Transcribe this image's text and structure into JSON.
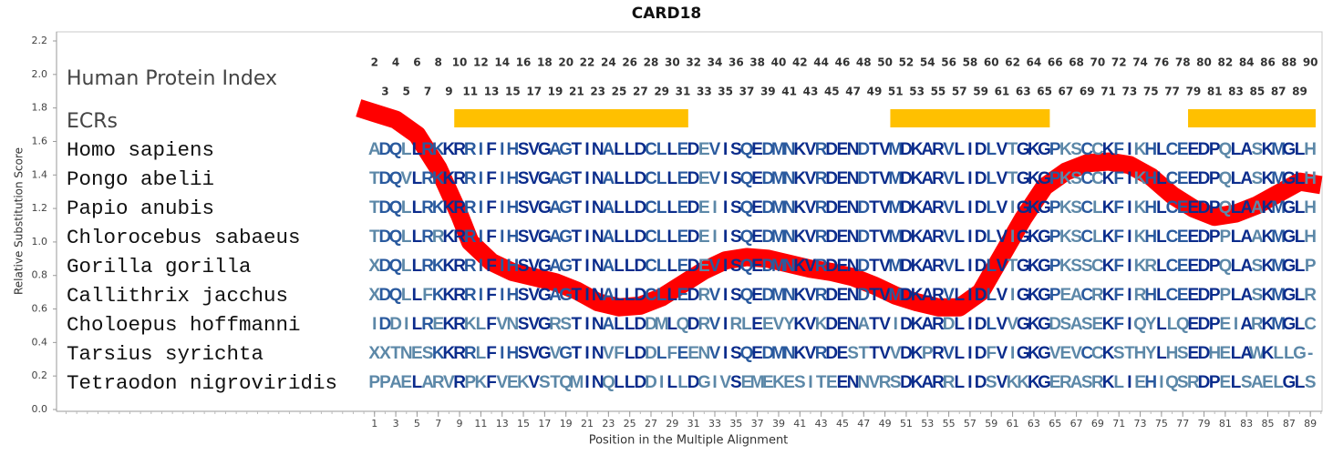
{
  "chart_data": {
    "type": "line",
    "title": "CARD18",
    "y_label": "Relative Substitution Score",
    "x_label": "Position in the Multiple Alignment",
    "xlim": [
      -28.9,
      90.1
    ],
    "ylim": [
      0,
      2.2
    ],
    "yticks": [
      {
        "value": 0,
        "label": "0.0"
      },
      0.2,
      0.4,
      0.6,
      0.8,
      {
        "value": 1,
        "label": "1.0"
      },
      1.2,
      1.4,
      1.6,
      1.8,
      {
        "value": 2,
        "label": "2.0"
      },
      2.2
    ],
    "xticks": [
      1,
      3,
      5,
      7,
      9,
      11,
      13,
      15,
      17,
      19,
      21,
      23,
      25,
      27,
      29,
      31,
      33,
      35,
      37,
      39,
      41,
      43,
      45,
      47,
      49,
      51,
      53,
      55,
      57,
      59,
      61,
      63,
      65,
      67,
      69,
      71,
      73,
      75,
      77,
      79,
      81,
      83,
      85,
      87,
      89
    ],
    "x": [
      -0.5,
      1,
      3,
      5,
      7,
      8,
      9,
      10,
      12,
      14,
      16,
      18,
      20,
      22,
      24,
      26,
      28,
      30,
      32,
      34,
      36,
      38,
      40,
      42,
      44,
      46,
      48,
      50,
      52,
      54,
      56,
      58,
      60,
      62,
      64,
      66,
      68,
      70,
      72,
      74,
      76,
      78,
      80,
      82,
      84,
      86,
      88,
      90
    ],
    "series": [
      {
        "color": "#ff0000",
        "values": [
          1.8,
          1.77,
          1.73,
          1.64,
          1.44,
          1.3,
          1.16,
          1.0,
          0.88,
          0.82,
          0.79,
          0.76,
          0.71,
          0.64,
          0.61,
          0.62,
          0.67,
          0.75,
          0.83,
          0.89,
          0.91,
          0.9,
          0.87,
          0.84,
          0.82,
          0.79,
          0.74,
          0.68,
          0.64,
          0.61,
          0.61,
          0.7,
          0.92,
          1.14,
          1.33,
          1.42,
          1.47,
          1.48,
          1.46,
          1.39,
          1.28,
          1.2,
          1.15,
          1.17,
          1.22,
          1.29,
          1.36,
          1.34
        ]
      }
    ],
    "index_label": "Human Protein Index",
    "human_index": {
      "positions": [
        1,
        2,
        3,
        4,
        5,
        6,
        7,
        8,
        9,
        10,
        11,
        12,
        13,
        14,
        15,
        16,
        17,
        18,
        19,
        20,
        21,
        22,
        23,
        24,
        25,
        26,
        27,
        28,
        29,
        30,
        31,
        32,
        33,
        34,
        35,
        36,
        37,
        38,
        39,
        40,
        41,
        42,
        43,
        44,
        45,
        46,
        47,
        48,
        49,
        50,
        51,
        52,
        53,
        54,
        55,
        56,
        57,
        58,
        59,
        60,
        61,
        62,
        63,
        64,
        65,
        66,
        67,
        68,
        69,
        70,
        71,
        72,
        73,
        74,
        75,
        76,
        77,
        78,
        79,
        80,
        81,
        82,
        83,
        84,
        85,
        86,
        87,
        88,
        89
      ],
      "labels": [
        2,
        3,
        4,
        5,
        6,
        7,
        8,
        9,
        10,
        11,
        12,
        13,
        14,
        15,
        16,
        17,
        18,
        19,
        20,
        21,
        22,
        23,
        24,
        25,
        26,
        27,
        28,
        29,
        30,
        31,
        32,
        33,
        34,
        35,
        36,
        37,
        38,
        39,
        40,
        41,
        42,
        43,
        44,
        45,
        46,
        47,
        48,
        49,
        50,
        51,
        52,
        53,
        54,
        55,
        56,
        57,
        58,
        59,
        60,
        61,
        62,
        63,
        64,
        65,
        66,
        67,
        68,
        69,
        70,
        71,
        72,
        73,
        74,
        75,
        76,
        77,
        78,
        79,
        80,
        81,
        82,
        83,
        84,
        85,
        86,
        87,
        88,
        89,
        90
      ]
    },
    "ecr_label": "ECRs",
    "ecr_color": "#ffc000",
    "ecrs": [
      {
        "start": 9,
        "end": 30
      },
      {
        "start": 50,
        "end": 64
      },
      {
        "start": 78,
        "end": 89
      }
    ],
    "residue_colors": [
      "#0b2c8c",
      "#2a5a9e",
      "#5c88a8"
    ],
    "species": [
      {
        "name": "Homo sapiens",
        "sequence": "ADQLLRKKRRIFIHSVGAGTINALLDCLLEDEVISQEDMNKVRDENDTVMDKARVLIDLVTGKGPKSCCKFIKHLCEEDPQLASKMGLH"
      },
      {
        "name": "Pongo abelii",
        "sequence": "TDQVLRKKRRIFIHSVGAGTINALLDCLLEDEVISQEDMNKVRDENDTVMDKARVLIDLVTGKGPKSCCKFIKHLCEEDPQLASKMGLH"
      },
      {
        "name": "Papio anubis",
        "sequence": "TDQLLRKKRRIFIHSVGAGTINALLDCLLEDEIISQEDMNKVRDENDTVMDKARVLIDLVIGKGPKSCLKFIKHLCEEDPQLAAKMGLH"
      },
      {
        "name": "Chlorocebus sabaeus",
        "sequence": "TDQLLRRKRRIFIHSVGAGTINALLDCLLEDEIISQEDMNKVRDENDTVMDKARVLIDLVIGKGPKSCLKFIKHLCEEDPPLAAKMGLH"
      },
      {
        "name": "Gorilla gorilla",
        "sequence": "XDQLLRKKRRIFIHSVGAGTINALLDCLLEDEVISQEDMNKVRDENDTVMDKARVLIDLVTGKGPKSSCKFIKRLCEEDPQLASKMGLP"
      },
      {
        "name": "Callithrix jacchus",
        "sequence": "XDQLLFKKRRIFIHSVGAGTINALLDCLLEDRVISQEDMNKVRDENDTVMDKARVLIDLVIGKGPEACRKFIRHLCEEDPPLASKMGLR"
      },
      {
        "name": "Choloepus hoffmanni",
        "sequence": "IDDILREKRKLFVNSVGRSTINALLDDMLQDRVIRLEEVYKVKDENATVIDKARDLIDLVVGKGDSASEKFIQYLLQEDPEIARKMGLC"
      },
      {
        "name": "Tarsius syrichta",
        "sequence": "XXTNESKKRRLFIHSVGVGTINVFLDDLFEENVISQEDMNKVRDESTTVVDKPRVLIDFVIGKGVEVCCKSTHYLHSEDHELAWKLLG-"
      },
      {
        "name": "Tetraodon nigroviridis",
        "sequence": "PPAELARVRPKFVEKVSTQMINQLLDDILLDGIVSEMEKESITEENNVRSDKARRLIDSVKKKGERASRKLIEHIQSRDPELSAELGLS"
      }
    ]
  }
}
